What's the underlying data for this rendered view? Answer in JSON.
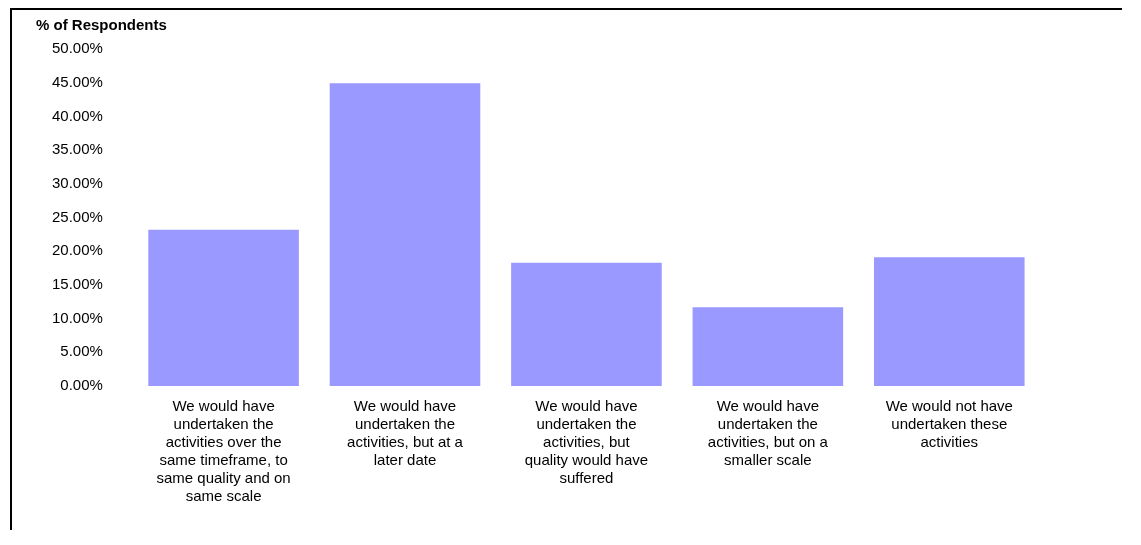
{
  "chart_data": {
    "type": "bar",
    "ylabel": "% of Respondents",
    "categories": [
      "We would have undertaken the activities over the same timeframe, to same quality and on same scale",
      "We would have undertaken the activities, but at a later date",
      "We would have undertaken the activities, but quality would have suffered",
      "We would have undertaken the activities, but on a smaller scale",
      "We would not have undertaken these activities"
    ],
    "values": [
      23.2,
      44.9,
      18.3,
      11.7,
      19.1
    ],
    "color": "#9999ff",
    "ylim": [
      0,
      50
    ],
    "yticks": [
      {
        "value": 0,
        "label": "0.00%"
      },
      {
        "value": 5,
        "label": "5.00%"
      },
      {
        "value": 10,
        "label": "10.00%"
      },
      {
        "value": 15,
        "label": "15.00%"
      },
      {
        "value": 20,
        "label": "20.00%"
      },
      {
        "value": 25,
        "label": "25.00%"
      },
      {
        "value": 30,
        "label": "30.00%"
      },
      {
        "value": 35,
        "label": "35.00%"
      },
      {
        "value": 40,
        "label": "40.00%"
      },
      {
        "value": 45,
        "label": "45.00%"
      },
      {
        "value": 50,
        "label": "50.00%"
      }
    ],
    "grid": false,
    "legend": false
  }
}
